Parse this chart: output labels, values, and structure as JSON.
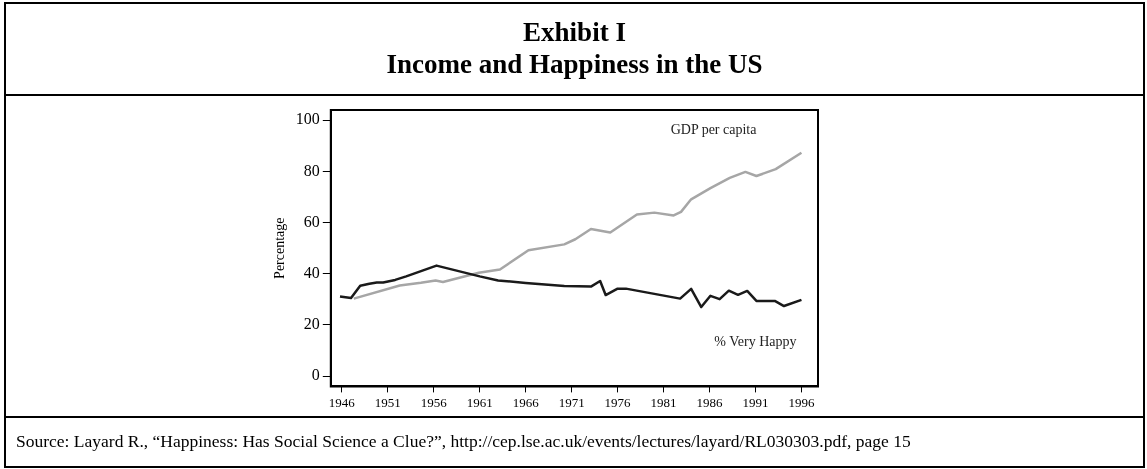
{
  "chart_data": {
    "type": "line",
    "title": "Exhibit I",
    "subtitle": "Income and Happiness in the US",
    "ylabel": "Percentage",
    "xlim": [
      1944.8,
      1997.8
    ],
    "xticks": [
      1946,
      1951,
      1956,
      1961,
      1966,
      1971,
      1976,
      1981,
      1986,
      1991,
      1996
    ],
    "ylim": [
      -4,
      104
    ],
    "yticks": [
      0,
      20,
      40,
      60,
      80,
      100
    ],
    "grid": false,
    "legend": false,
    "marker": "none",
    "line_style": "solid",
    "series": [
      {
        "name": "% Very Happy",
        "color": "#1a1a1a",
        "x": [
          1945.8,
          1947,
          1948,
          1949,
          1949.8,
          1950.5,
          1951.8,
          1953,
          1956.3,
          1961,
          1963,
          1966,
          1970.2,
          1973.1,
          1974.1,
          1974.7,
          1976,
          1976.9,
          1982.8,
          1984,
          1985.1,
          1986.1,
          1987.1,
          1988.1,
          1989.1,
          1990.1,
          1991.1,
          1993.1,
          1994.1,
          1996
        ],
        "values": [
          31.1,
          30.5,
          35.3,
          36.1,
          36.6,
          36.6,
          37.6,
          39,
          43.2,
          39,
          37.4,
          36.4,
          35.2,
          35,
          37.2,
          31.7,
          34.2,
          34.2,
          30.3,
          34.1,
          27,
          31.4,
          30.1,
          33.4,
          31.8,
          33.3,
          29.4,
          29.4,
          27.4,
          29.8
        ]
      },
      {
        "name": "GDP per capita",
        "color": "#a6a6a6",
        "x": [
          1947.3,
          1952.3,
          1954.6,
          1956.2,
          1957,
          1960.9,
          1963.2,
          1966.3,
          1970.2,
          1971.4,
          1973.1,
          1975.2,
          1978.1,
          1980,
          1982.1,
          1982.9,
          1984,
          1986.1,
          1988.2,
          1989.9,
          1991.1,
          1993.2,
          1996
        ],
        "values": [
          30.3,
          35.4,
          36.5,
          37.4,
          36.8,
          40.4,
          41.7,
          49.2,
          51.5,
          53.5,
          57.5,
          56.1,
          63.2,
          63.9,
          62.8,
          64.2,
          69.1,
          73.5,
          77.5,
          79.8,
          78.2,
          80.9,
          87.3
        ]
      }
    ],
    "annotations": [
      "Source: Layard R., “Happiness: Has Social Science a Clue?”, http://cep.lse.ac.uk/events/lectures/layard/RL030303.pdf, page 15"
    ]
  }
}
